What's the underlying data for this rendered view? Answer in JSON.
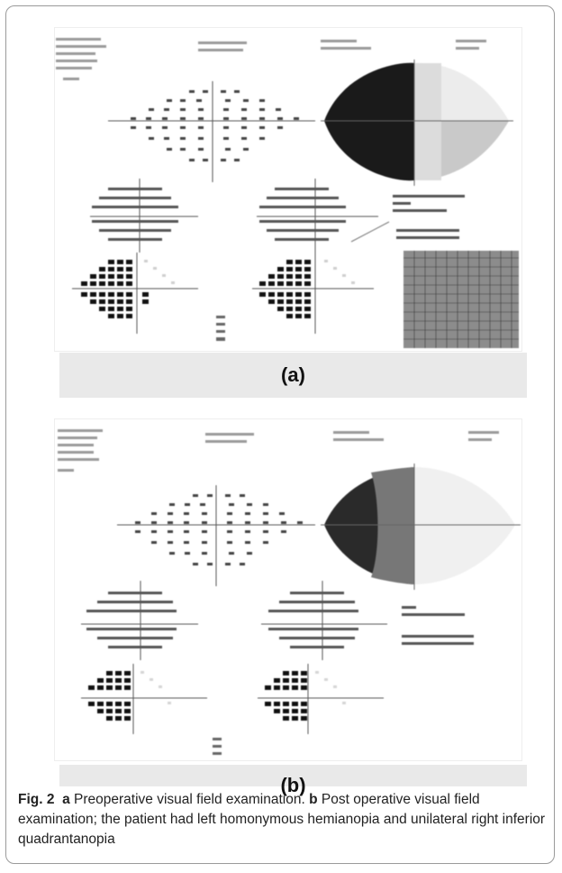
{
  "figure": {
    "panel_a_label": "(a)",
    "panel_b_label": "(b)"
  },
  "caption": {
    "fig_label": "Fig. 2",
    "a_marker": "a",
    "a_text": " Preoperative visual field examination. ",
    "b_marker": "b",
    "b_text": " Post operative visual field examination; the patient had left homonymous hemianopia and unilateral right inferior quadrantanopia"
  },
  "colors": {
    "frame_border": "#9a9a9a",
    "label_band": "#e9e9e9",
    "field_dark": "#111111",
    "field_light": "#f2f2f2"
  }
}
